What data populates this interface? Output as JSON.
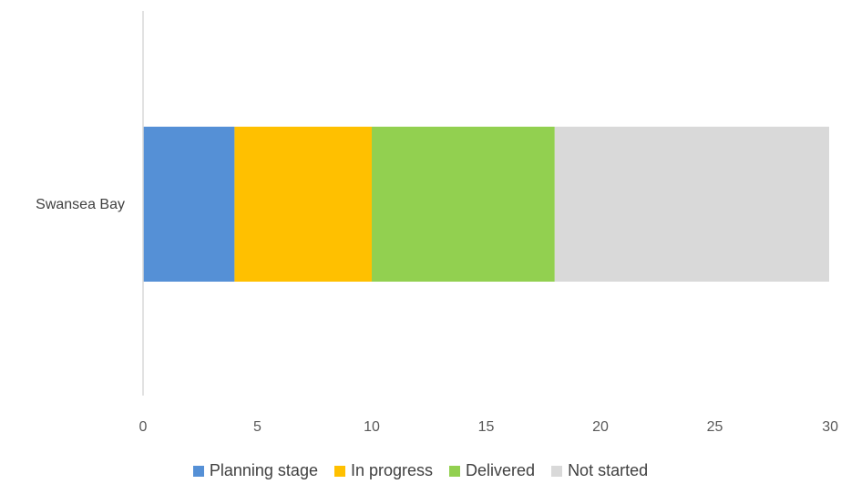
{
  "chart_data": {
    "type": "bar",
    "orientation": "horizontal",
    "stacked": true,
    "categories": [
      "Swansea Bay"
    ],
    "series": [
      {
        "name": "Planning stage",
        "values": [
          4
        ],
        "color": "#5590D6"
      },
      {
        "name": "In progress",
        "values": [
          6
        ],
        "color": "#FFC000"
      },
      {
        "name": "Delivered",
        "values": [
          8
        ],
        "color": "#92D050"
      },
      {
        "name": "Not started",
        "values": [
          12
        ],
        "color": "#D9D9D9"
      }
    ],
    "xlim": [
      0,
      30
    ],
    "xticks": [
      "0",
      "5",
      "10",
      "15",
      "20",
      "25",
      "30"
    ],
    "grid": false,
    "legend_position": "bottom"
  }
}
